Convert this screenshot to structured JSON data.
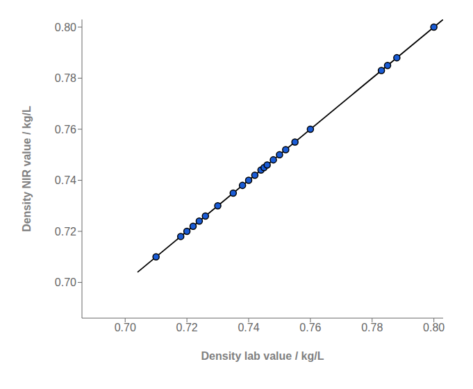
{
  "chart_data": {
    "type": "scatter",
    "xlabel": "Density lab value / kg/L",
    "ylabel": "Density NIR value / kg/L",
    "xlim": [
      0.686,
      0.803
    ],
    "ylim": [
      0.686,
      0.803
    ],
    "xticks": [
      {
        "value": 0.7,
        "label": "0.70"
      },
      0.72,
      0.74,
      0.76,
      0.78,
      {
        "value": 0.8,
        "label": "0.80"
      }
    ],
    "yticks": [
      {
        "value": 0.7,
        "label": "0.70"
      },
      0.72,
      0.74,
      0.76,
      0.78,
      {
        "value": 0.8,
        "label": "0.80"
      }
    ],
    "grid": false,
    "series": [
      {
        "type": "line",
        "color": "#000000",
        "x": [
          0.704,
          0.803
        ],
        "values": [
          0.704,
          0.803
        ]
      },
      {
        "type": "scatter",
        "color": "#1A5CD6",
        "x": [
          0.71,
          0.718,
          0.72,
          0.722,
          0.724,
          0.726,
          0.73,
          0.735,
          0.738,
          0.74,
          0.742,
          0.744,
          0.745,
          0.746,
          0.748,
          0.75,
          0.752,
          0.755,
          0.76,
          0.783,
          0.785,
          0.788,
          0.8
        ],
        "values": [
          0.71,
          0.718,
          0.72,
          0.722,
          0.724,
          0.726,
          0.73,
          0.735,
          0.738,
          0.74,
          0.742,
          0.744,
          0.745,
          0.746,
          0.748,
          0.75,
          0.752,
          0.755,
          0.76,
          0.783,
          0.785,
          0.788,
          0.8
        ]
      }
    ]
  }
}
